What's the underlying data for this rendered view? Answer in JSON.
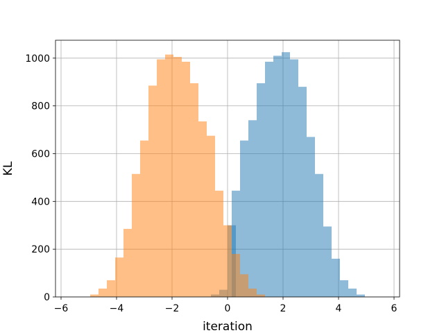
{
  "chart_data": {
    "type": "bar",
    "title": "",
    "xlabel": "iteration",
    "ylabel": "KL",
    "xlim": [
      -6.2,
      6.2
    ],
    "ylim": [
      0,
      1075
    ],
    "xticks": [
      -6,
      -4,
      -2,
      0,
      2,
      4,
      6
    ],
    "xtick_labels": [
      "−6",
      "−4",
      "−2",
      "0",
      "2",
      "4",
      "6"
    ],
    "yticks": [
      0,
      200,
      400,
      600,
      800,
      1000
    ],
    "ytick_labels": [
      "0",
      "200",
      "400",
      "600",
      "800",
      "1000"
    ],
    "grid": true,
    "legend": "none",
    "series": [
      {
        "color": "#1f77b4",
        "opacity": 0.5,
        "bin_width": 0.3,
        "bins": [
          {
            "x0": -0.6,
            "value": 10
          },
          {
            "x0": -0.3,
            "value": 30
          },
          {
            "x0": 0.0,
            "value": 300
          },
          {
            "x0": 0.15,
            "value": 445
          },
          {
            "x0": 0.45,
            "value": 655
          },
          {
            "x0": 0.75,
            "value": 740
          },
          {
            "x0": 1.05,
            "value": 895
          },
          {
            "x0": 1.35,
            "value": 985
          },
          {
            "x0": 1.65,
            "value": 1010
          },
          {
            "x0": 1.95,
            "value": 1025
          },
          {
            "x0": 2.25,
            "value": 995
          },
          {
            "x0": 2.55,
            "value": 880
          },
          {
            "x0": 2.85,
            "value": 670
          },
          {
            "x0": 3.15,
            "value": 515
          },
          {
            "x0": 3.45,
            "value": 295
          },
          {
            "x0": 3.75,
            "value": 160
          },
          {
            "x0": 4.05,
            "value": 70
          },
          {
            "x0": 4.35,
            "value": 35
          },
          {
            "x0": 4.65,
            "value": 10
          }
        ]
      },
      {
        "color": "#ff7f0e",
        "opacity": 0.5,
        "bin_width": 0.3,
        "bins": [
          {
            "x0": -4.95,
            "value": 10
          },
          {
            "x0": -4.65,
            "value": 35
          },
          {
            "x0": -4.35,
            "value": 70
          },
          {
            "x0": -4.05,
            "value": 165
          },
          {
            "x0": -3.75,
            "value": 285
          },
          {
            "x0": -3.45,
            "value": 515
          },
          {
            "x0": -3.15,
            "value": 655
          },
          {
            "x0": -2.85,
            "value": 885
          },
          {
            "x0": -2.55,
            "value": 995
          },
          {
            "x0": -2.25,
            "value": 1015
          },
          {
            "x0": -1.95,
            "value": 1005
          },
          {
            "x0": -1.65,
            "value": 985
          },
          {
            "x0": -1.35,
            "value": 895
          },
          {
            "x0": -1.05,
            "value": 735
          },
          {
            "x0": -0.75,
            "value": 675
          },
          {
            "x0": -0.45,
            "value": 445
          },
          {
            "x0": -0.15,
            "value": 300
          },
          {
            "x0": 0.15,
            "value": 180
          },
          {
            "x0": 0.45,
            "value": 95
          },
          {
            "x0": 0.75,
            "value": 35
          },
          {
            "x0": 1.05,
            "value": 10
          }
        ]
      }
    ]
  }
}
